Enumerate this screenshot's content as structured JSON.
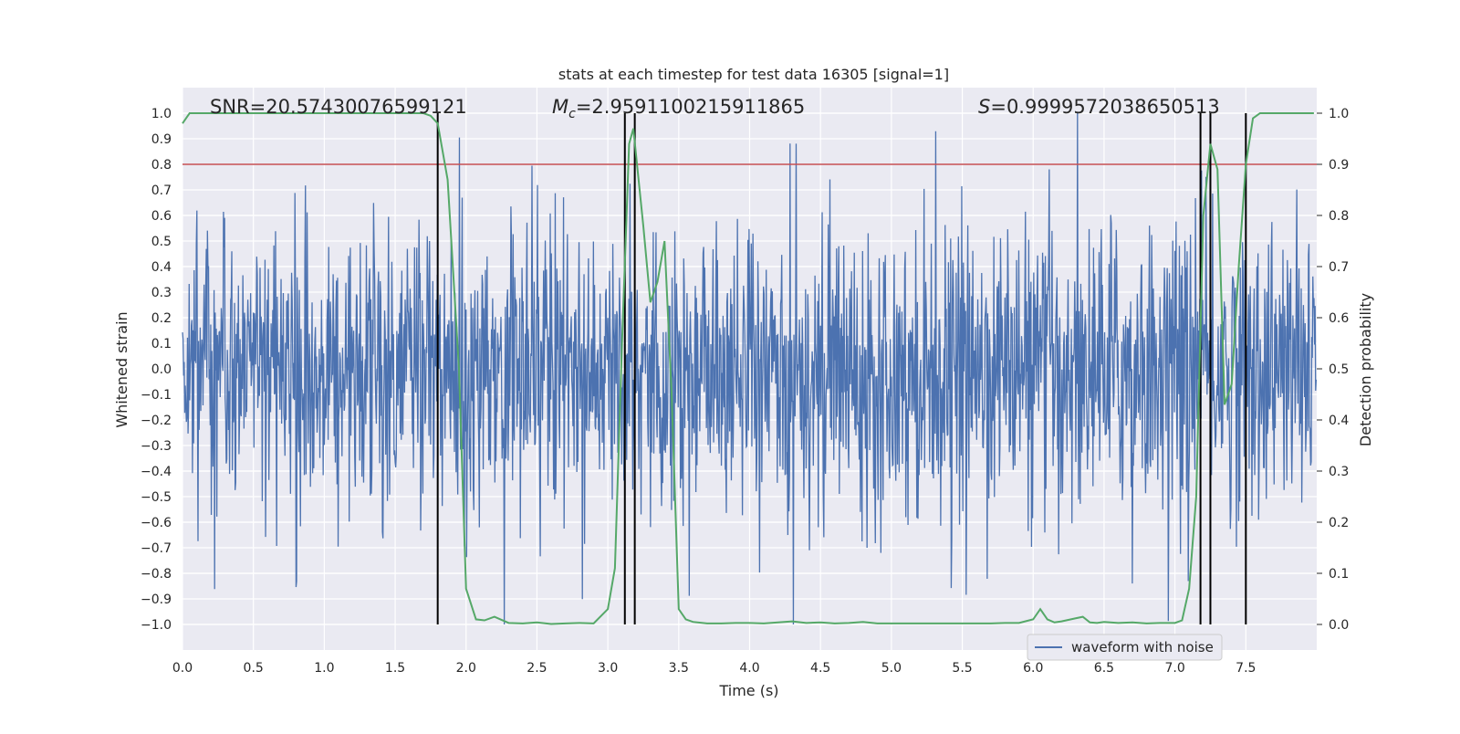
{
  "chart_data": {
    "type": "line",
    "title": "stats at each timestep for test data 16305 [signal=1]",
    "xlabel": "Time (s)",
    "ylabel_left": "Whitened strain",
    "ylabel_right": "Detection probability",
    "xlim": [
      0,
      8
    ],
    "ylim_left": [
      -1.1,
      1.1
    ],
    "ylim_right": [
      -0.05,
      1.05
    ],
    "x_ticks": [
      "0.0",
      "0.5",
      "1.0",
      "1.5",
      "2.0",
      "2.5",
      "3.0",
      "3.5",
      "4.0",
      "4.5",
      "5.0",
      "5.5",
      "6.0",
      "6.5",
      "7.0",
      "7.5"
    ],
    "y_left_ticks": [
      "1.0",
      "0.9",
      "0.8",
      "0.7",
      "0.6",
      "0.5",
      "0.4",
      "0.3",
      "0.2",
      "0.1",
      "0.0",
      "-0.1",
      "-0.2",
      "-0.3",
      "-0.4",
      "-0.5",
      "-0.6",
      "-0.7",
      "-0.8",
      "-0.9",
      "-1.0"
    ],
    "y_right_ticks": [
      "1.0",
      "0.9",
      "0.8",
      "0.7",
      "0.6",
      "0.5",
      "0.4",
      "0.3",
      "0.2",
      "0.1",
      "0.0"
    ],
    "grid": true,
    "legend_position": "lower-right",
    "legend_entry": "waveform with noise",
    "annotations": {
      "snr_prefix": "SNR=",
      "snr_value": "20.57430076599121",
      "mc_symbol": "M",
      "mc_subscript": "c",
      "mc_value": "=2.9591100215911865",
      "s_symbol": "S",
      "s_value": "=0.9999572038650513"
    },
    "threshold": {
      "value_right": 0.9,
      "color": "#c44e52"
    },
    "vertical_lines": [
      1.8,
      3.12,
      3.19,
      7.18,
      7.25,
      7.5
    ],
    "waveform": {
      "name": "waveform with noise",
      "color": "#4c72b0",
      "duration_s": 8.0,
      "samples": 2048,
      "typical_amplitude": 0.35,
      "peak_amplitude": 1.0
    },
    "probability": {
      "color": "#55a868",
      "x": [
        0.0,
        0.05,
        0.1,
        0.15,
        0.2,
        0.25,
        0.3,
        0.35,
        0.4,
        0.45,
        0.5,
        0.55,
        0.6,
        0.65,
        0.7,
        0.75,
        0.8,
        0.85,
        0.9,
        0.95,
        1.0,
        1.05,
        1.1,
        1.15,
        1.2,
        1.25,
        1.3,
        1.35,
        1.4,
        1.45,
        1.5,
        1.55,
        1.6,
        1.65,
        1.7,
        1.75,
        1.8,
        1.87,
        1.95,
        2.0,
        2.07,
        2.13,
        2.2,
        2.3,
        2.4,
        2.5,
        2.6,
        2.7,
        2.8,
        2.9,
        3.0,
        3.05,
        3.1,
        3.15,
        3.18,
        3.25,
        3.3,
        3.35,
        3.4,
        3.45,
        3.5,
        3.55,
        3.6,
        3.7,
        3.8,
        3.9,
        4.0,
        4.1,
        4.2,
        4.3,
        4.4,
        4.5,
        4.6,
        4.7,
        4.8,
        4.9,
        5.0,
        5.1,
        5.2,
        5.3,
        5.4,
        5.5,
        5.6,
        5.7,
        5.8,
        5.9,
        6.0,
        6.05,
        6.1,
        6.15,
        6.2,
        6.3,
        6.35,
        6.4,
        6.45,
        6.5,
        6.6,
        6.7,
        6.8,
        6.9,
        7.0,
        7.05,
        7.1,
        7.15,
        7.2,
        7.25,
        7.3,
        7.35,
        7.4,
        7.45,
        7.5,
        7.55,
        7.6,
        7.7,
        7.8,
        7.9,
        7.98
      ],
      "y": [
        0.98,
        1.0,
        1.0,
        1.0,
        1.0,
        1.0,
        1.0,
        1.0,
        1.0,
        1.0,
        1.0,
        1.0,
        1.0,
        1.0,
        1.0,
        1.0,
        1.0,
        1.0,
        1.0,
        1.0,
        1.0,
        1.0,
        1.0,
        1.0,
        1.0,
        1.0,
        1.0,
        1.0,
        1.0,
        1.0,
        1.0,
        1.0,
        1.0,
        1.0,
        1.0,
        0.995,
        0.98,
        0.87,
        0.5,
        0.07,
        0.01,
        0.008,
        0.015,
        0.003,
        0.002,
        0.004,
        0.001,
        0.002,
        0.003,
        0.002,
        0.03,
        0.11,
        0.55,
        0.94,
        0.97,
        0.78,
        0.63,
        0.67,
        0.75,
        0.45,
        0.03,
        0.01,
        0.005,
        0.002,
        0.002,
        0.003,
        0.003,
        0.002,
        0.004,
        0.006,
        0.003,
        0.004,
        0.002,
        0.003,
        0.005,
        0.002,
        0.002,
        0.002,
        0.002,
        0.002,
        0.002,
        0.002,
        0.002,
        0.002,
        0.003,
        0.003,
        0.01,
        0.03,
        0.01,
        0.004,
        0.006,
        0.012,
        0.015,
        0.004,
        0.003,
        0.005,
        0.003,
        0.004,
        0.002,
        0.003,
        0.003,
        0.008,
        0.07,
        0.25,
        0.8,
        0.94,
        0.89,
        0.43,
        0.47,
        0.7,
        0.9,
        0.99,
        1.0,
        1.0,
        1.0,
        1.0,
        1.0
      ]
    },
    "colors": {
      "background": "#eaeaf2",
      "grid": "#ffffff",
      "vline": "#000000"
    }
  }
}
